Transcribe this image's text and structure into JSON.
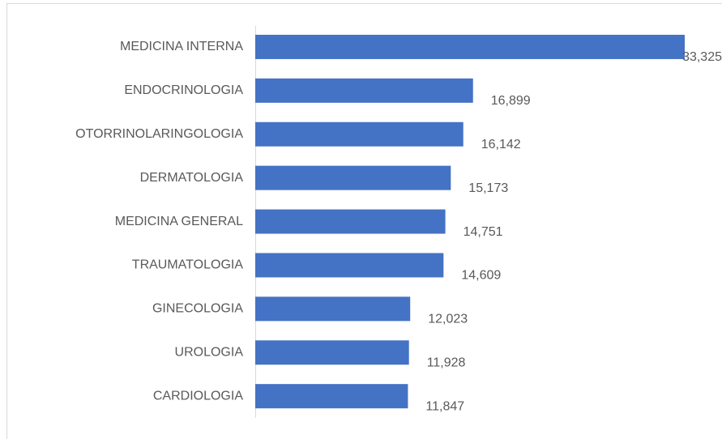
{
  "chart_data": {
    "type": "bar",
    "orientation": "horizontal",
    "categories": [
      "MEDICINA INTERNA",
      "ENDOCRINOLOGIA",
      "OTORRINOLARINGOLOGIA",
      "DERMATOLOGIA",
      "MEDICINA GENERAL",
      "TRAUMATOLOGIA",
      "GINECOLOGIA",
      "UROLOGIA",
      "CARDIOLOGIA"
    ],
    "values": [
      33325,
      16899,
      16142,
      15173,
      14751,
      14609,
      12023,
      11928,
      11847
    ],
    "value_labels": [
      "33,325",
      "16,899",
      "16,142",
      "15,173",
      "14,751",
      "14,609",
      "12,023",
      "11,928",
      "11,847"
    ],
    "color": "#4472c4"
  }
}
